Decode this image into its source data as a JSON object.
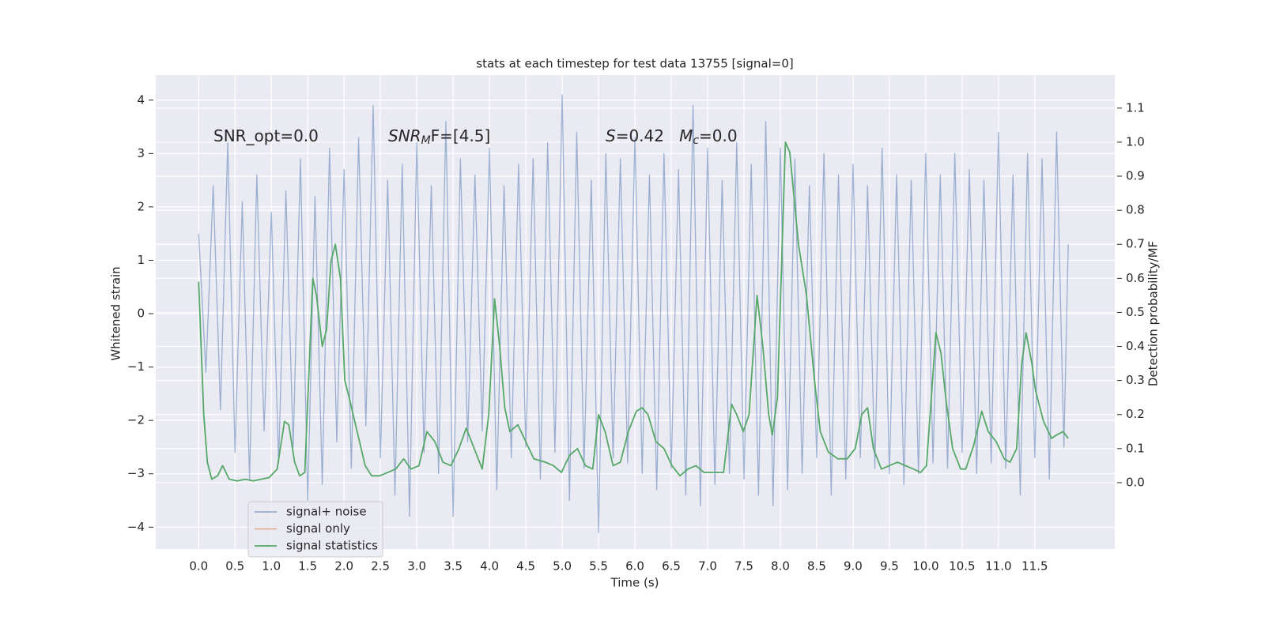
{
  "chart_data": {
    "type": "line",
    "title": "stats at each timestep for test data 13755 [signal=0]",
    "xlabel": "Time (s)",
    "ylabel": "Whitened strain",
    "y2label": "Detection probability/MF",
    "annotations": [
      {
        "parts": [
          {
            "text": "SNR_opt=0.0"
          }
        ]
      },
      {
        "parts": [
          {
            "text": "SNR",
            "style": "italic"
          },
          {
            "text": "M",
            "style": "italic-sub"
          },
          {
            "text": "F=[4.5]"
          }
        ]
      },
      {
        "parts": [
          {
            "text": "S",
            "style": "italic"
          },
          {
            "text": "=0.42   "
          },
          {
            "text": "M",
            "style": "italic"
          },
          {
            "text": "c",
            "style": "italic-sub"
          },
          {
            "text": "=0.0"
          }
        ]
      }
    ],
    "x": [
      0.0,
      0.1,
      0.2,
      0.3,
      0.4,
      0.5,
      0.6,
      0.7,
      0.8,
      0.9,
      1.0,
      1.1,
      1.2,
      1.3,
      1.4,
      1.5,
      1.6,
      1.7,
      1.8,
      1.9,
      2.0,
      2.1,
      2.2,
      2.3,
      2.4,
      2.5,
      2.6,
      2.7,
      2.8,
      2.9,
      3.0,
      3.1,
      3.2,
      3.3,
      3.4,
      3.5,
      3.6,
      3.7,
      3.8,
      3.9,
      4.0,
      4.1,
      4.2,
      4.3,
      4.4,
      4.5,
      4.6,
      4.7,
      4.8,
      4.9,
      5.0,
      5.1,
      5.2,
      5.3,
      5.4,
      5.5,
      5.6,
      5.7,
      5.8,
      5.9,
      6.0,
      6.1,
      6.2,
      6.3,
      6.4,
      6.5,
      6.6,
      6.7,
      6.8,
      6.9,
      7.0,
      7.1,
      7.2,
      7.3,
      7.4,
      7.5,
      7.6,
      7.7,
      7.8,
      7.9,
      8.0,
      8.1,
      8.2,
      8.3,
      8.4,
      8.5,
      8.6,
      8.7,
      8.8,
      8.9,
      9.0,
      9.1,
      9.2,
      9.3,
      9.4,
      9.5,
      9.6,
      9.7,
      9.8,
      9.9,
      10.0,
      10.1,
      10.2,
      10.3,
      10.4,
      10.5,
      10.6,
      10.7,
      10.8,
      10.9,
      11.0,
      11.1,
      11.2,
      11.3,
      11.4,
      11.5,
      11.6,
      11.7,
      11.8,
      11.9,
      11.96
    ],
    "series": [
      {
        "name": "signal+ noise",
        "color": "#4c72b0",
        "opacity": 0.5,
        "values": [
          1.5,
          -1.1,
          2.4,
          -1.8,
          3.2,
          -2.6,
          2.1,
          -3.1,
          2.6,
          -2.2,
          1.9,
          -2.8,
          2.3,
          -2.5,
          2.9,
          -3.5,
          2.2,
          -3.2,
          3.1,
          -2.4,
          2.7,
          -2.9,
          3.3,
          -2.1,
          3.9,
          -2.7,
          2.5,
          -3.4,
          2.8,
          -3.8,
          3.2,
          -2.6,
          2.4,
          -3.0,
          3.6,
          -3.8,
          2.9,
          -2.4,
          2.6,
          -2.2,
          3.1,
          -3.3,
          2.4,
          -2.7,
          2.8,
          -2.5,
          2.9,
          -3.1,
          3.2,
          -2.6,
          4.1,
          -3.5,
          3.4,
          -2.9,
          2.5,
          -4.1,
          3.0,
          -2.7,
          2.9,
          -2.8,
          3.3,
          -3.0,
          2.6,
          -3.3,
          3.0,
          -2.9,
          2.7,
          -3.4,
          3.9,
          -3.6,
          3.1,
          -3.2,
          2.5,
          -3.0,
          3.2,
          -3.1,
          2.8,
          -3.4,
          3.6,
          -3.6,
          3.1,
          -3.3,
          2.9,
          -3.0,
          2.4,
          -2.7,
          3.0,
          -3.4,
          2.6,
          -3.1,
          2.8,
          -2.7,
          2.4,
          -2.9,
          3.1,
          -3.0,
          2.6,
          -3.2,
          2.5,
          -3.0,
          3.0,
          -2.8,
          2.6,
          -2.9,
          3.0,
          -2.6,
          2.7,
          -3.0,
          2.5,
          -2.8,
          3.4,
          -2.9,
          2.6,
          -3.4,
          3.0,
          -2.7,
          2.9,
          -3.1,
          3.4,
          -2.5,
          1.3
        ]
      },
      {
        "name": "signal only",
        "color": "#dd8452"
      },
      {
        "name": "signal statistics",
        "color": "#55a868",
        "axis": "y2",
        "x": [
          0,
          0.07,
          0.12,
          0.18,
          0.26,
          0.33,
          0.42,
          0.53,
          0.64,
          0.75,
          0.97,
          1.08,
          1.18,
          1.24,
          1.32,
          1.39,
          1.46,
          1.57,
          1.62,
          1.7,
          1.76,
          1.82,
          1.88,
          1.95,
          2.01,
          2.07,
          2.18,
          2.29,
          2.38,
          2.49,
          2.6,
          2.71,
          2.82,
          2.92,
          3.03,
          3.14,
          3.25,
          3.36,
          3.47,
          3.58,
          3.68,
          3.79,
          3.9,
          3.99,
          4.07,
          4.14,
          4.21,
          4.28,
          4.39,
          4.5,
          4.61,
          4.77,
          4.88,
          4.99,
          5.1,
          5.21,
          5.32,
          5.42,
          5.5,
          5.59,
          5.7,
          5.8,
          5.91,
          6.02,
          6.1,
          6.18,
          6.29,
          6.4,
          6.51,
          6.62,
          6.73,
          6.84,
          6.95,
          7.05,
          7.22,
          7.33,
          7.4,
          7.49,
          7.57,
          7.68,
          7.76,
          7.84,
          7.89,
          7.96,
          8.07,
          8.13,
          8.25,
          8.36,
          8.47,
          8.55,
          8.66,
          8.79,
          8.92,
          9.03,
          9.12,
          9.2,
          9.28,
          9.39,
          9.5,
          9.61,
          9.72,
          9.83,
          9.93,
          10.01,
          10.14,
          10.21,
          10.28,
          10.37,
          10.48,
          10.55,
          10.66,
          10.77,
          10.86,
          10.97,
          11.08,
          11.16,
          11.25,
          11.32,
          11.38,
          11.46,
          11.51,
          11.62,
          11.73,
          11.8,
          11.89,
          11.96
        ],
        "values": [
          0.59,
          0.2,
          0.06,
          0.01,
          0.02,
          0.05,
          0.01,
          0.005,
          0.01,
          0.005,
          0.015,
          0.04,
          0.18,
          0.17,
          0.06,
          0.02,
          0.03,
          0.6,
          0.55,
          0.4,
          0.45,
          0.65,
          0.7,
          0.6,
          0.3,
          0.25,
          0.15,
          0.05,
          0.02,
          0.02,
          0.03,
          0.04,
          0.07,
          0.04,
          0.05,
          0.15,
          0.12,
          0.06,
          0.05,
          0.1,
          0.16,
          0.1,
          0.04,
          0.2,
          0.54,
          0.4,
          0.22,
          0.15,
          0.17,
          0.12,
          0.07,
          0.06,
          0.05,
          0.03,
          0.08,
          0.1,
          0.05,
          0.04,
          0.2,
          0.15,
          0.05,
          0.06,
          0.15,
          0.21,
          0.22,
          0.2,
          0.12,
          0.1,
          0.05,
          0.02,
          0.04,
          0.05,
          0.03,
          0.03,
          0.03,
          0.23,
          0.2,
          0.15,
          0.2,
          0.55,
          0.4,
          0.2,
          0.14,
          0.25,
          1.0,
          0.97,
          0.7,
          0.55,
          0.3,
          0.15,
          0.09,
          0.07,
          0.07,
          0.1,
          0.2,
          0.22,
          0.1,
          0.04,
          0.05,
          0.06,
          0.05,
          0.04,
          0.03,
          0.05,
          0.44,
          0.38,
          0.24,
          0.1,
          0.04,
          0.04,
          0.11,
          0.21,
          0.15,
          0.12,
          0.07,
          0.06,
          0.1,
          0.35,
          0.44,
          0.35,
          0.27,
          0.18,
          0.13,
          0.14,
          0.15,
          0.13
        ]
      }
    ],
    "xlim": [
      -0.59,
      12.6
    ],
    "ylim": [
      -4.41,
      4.47
    ],
    "y2lim": [
      -0.195,
      1.197
    ],
    "xticks": [
      {
        "value": 0,
        "label": "0.0"
      },
      0.5,
      {
        "value": 1,
        "label": "1.0"
      },
      1.5,
      {
        "value": 2,
        "label": "2.0"
      },
      2.5,
      {
        "value": 3,
        "label": "3.0"
      },
      3.5,
      {
        "value": 4,
        "label": "4.0"
      },
      4.5,
      {
        "value": 5,
        "label": "5.0"
      },
      5.5,
      {
        "value": 6,
        "label": "6.0"
      },
      6.5,
      {
        "value": 7,
        "label": "7.0"
      },
      7.5,
      {
        "value": 8,
        "label": "8.0"
      },
      8.5,
      {
        "value": 9,
        "label": "9.0"
      },
      9.5,
      {
        "value": 10,
        "label": "10.0"
      },
      10.5,
      {
        "value": 11,
        "label": "11.0"
      },
      11.5
    ],
    "yticks": [
      {
        "value": -4,
        "label": "−4"
      },
      {
        "value": -3,
        "label": "−3"
      },
      {
        "value": -2,
        "label": "−2"
      },
      {
        "value": -1,
        "label": "−1"
      },
      0,
      1,
      2,
      3,
      4
    ],
    "y2ticks": [
      {
        "value": 0,
        "label": "0.0"
      },
      0.1,
      0.2,
      0.3,
      0.4,
      0.5,
      0.6,
      0.7,
      0.8,
      0.9,
      {
        "value": 1,
        "label": "1.0"
      },
      1.1
    ],
    "grid": true,
    "background": "#eaeaf2",
    "legend": "lower left"
  }
}
